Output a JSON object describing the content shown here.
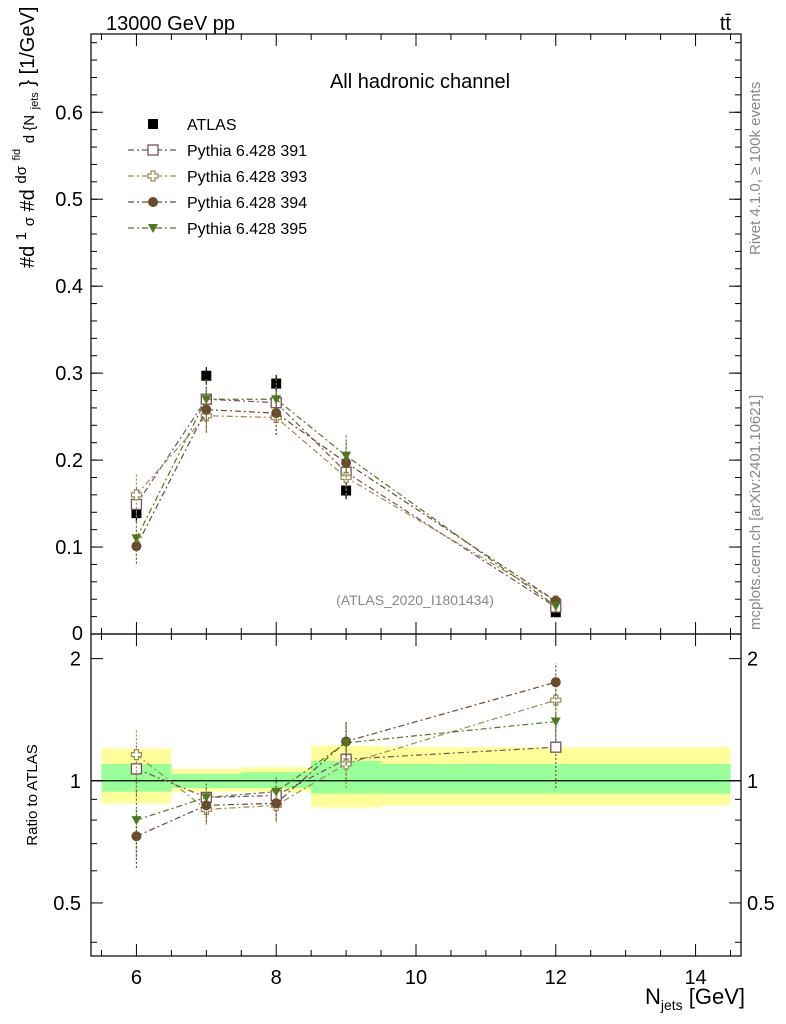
{
  "header": {
    "energy_label": "13000 GeV pp",
    "process_label": "tt̄"
  },
  "side_labels": {
    "rivet": "Rivet 4.1.0, ≥ 100k events",
    "mcplots": "mcplots.cern.ch [arXiv:2401.10621]"
  },
  "chart_data": [
    {
      "type": "line",
      "panel": "main",
      "title": "All hadronic channel",
      "analysis_tag": "(ATLAS_2020_I1801434)",
      "ylabel": "#d¹/σ #d dσᵗᵗ/d{N_jets} [1/GeV]",
      "ylabel_parts": {
        "a": "#d",
        "b": "1",
        "c": "σ",
        "d": "#d",
        "e": "dσ",
        "f": "fid",
        "g": "d {N",
        "h": "jets",
        "i": "} [1/GeV]"
      },
      "xlim": [
        5.35,
        14.65
      ],
      "ylim": [
        0,
        0.69
      ],
      "yticks": [
        0.1,
        0.2,
        0.3,
        0.4,
        0.5,
        0.6
      ],
      "ytick_labels": [
        "0.1",
        "0.2",
        "0.3",
        "0.4",
        "0.5",
        "0.6"
      ],
      "ytick_zero_label": "0",
      "x": [
        6,
        7,
        8,
        9,
        12
      ],
      "series": [
        {
          "name": "ATLAS",
          "marker": "square-filled",
          "color": "#000000",
          "values": [
            0.139,
            0.297,
            0.288,
            0.165,
            0.025
          ],
          "err": [
            0.01,
            0.01,
            0.01,
            0.01,
            0.005
          ]
        },
        {
          "name": "Pythia 6.428 391",
          "marker": "square-open",
          "color": "#7a4e60",
          "values": [
            0.149,
            0.27,
            0.266,
            0.186,
            0.031
          ],
          "err": [
            0.02,
            0.02,
            0.02,
            0.02,
            0.005
          ]
        },
        {
          "name": "Pythia 6.428 393",
          "marker": "cross-open",
          "color": "#9a8a50",
          "values": [
            0.16,
            0.251,
            0.249,
            0.18,
            0.038
          ],
          "err": [
            0.025,
            0.02,
            0.02,
            0.02,
            0.006
          ]
        },
        {
          "name": "Pythia 6.428 394",
          "marker": "circle-filled",
          "color": "#6b4a2e",
          "values": [
            0.101,
            0.258,
            0.254,
            0.197,
            0.038
          ],
          "err": [
            0.02,
            0.025,
            0.025,
            0.025,
            0.006
          ]
        },
        {
          "name": "Pythia 6.428 395",
          "marker": "triangle-down-filled",
          "color": "#4e7a1e",
          "values": [
            0.11,
            0.27,
            0.27,
            0.205,
            0.032
          ],
          "err": [
            0.02,
            0.025,
            0.025,
            0.025,
            0.006
          ]
        }
      ]
    },
    {
      "type": "line",
      "panel": "ratio",
      "ylabel": "Ratio to ATLAS",
      "xlabel": "N",
      "xlabel_sub": "jets",
      "xlabel_unit": " [GeV]",
      "xlim": [
        5.35,
        14.65
      ],
      "ylim": [
        0.37,
        2.3
      ],
      "xticks": [
        6,
        8,
        10,
        12,
        14
      ],
      "xtick_labels": [
        "6",
        "8",
        "10",
        "12",
        "14"
      ],
      "yticks": [
        0.5,
        1,
        2
      ],
      "ytick_labels": [
        "0.5",
        "1",
        "2"
      ],
      "reference": 1,
      "bands": [
        {
          "x0": 5.5,
          "x1": 6.5,
          "inner": [
            0.94,
            1.1
          ],
          "outer": [
            0.88,
            1.2
          ]
        },
        {
          "x0": 6.5,
          "x1": 7.5,
          "inner": [
            0.96,
            1.04
          ],
          "outer": [
            0.94,
            1.07
          ]
        },
        {
          "x0": 7.5,
          "x1": 8.5,
          "inner": [
            0.96,
            1.05
          ],
          "outer": [
            0.94,
            1.08
          ]
        },
        {
          "x0": 8.5,
          "x1": 9.5,
          "inner": [
            0.93,
            1.12
          ],
          "outer": [
            0.86,
            1.22
          ]
        },
        {
          "x0": 9.5,
          "x1": 14.5,
          "inner": [
            0.93,
            1.1
          ],
          "outer": [
            0.87,
            1.21
          ]
        }
      ],
      "x": [
        6,
        7,
        8,
        9,
        12
      ],
      "series": [
        {
          "name": "Pythia 6.428 391",
          "marker": "square-open",
          "color": "#7a4e60",
          "values": [
            1.07,
            0.91,
            0.92,
            1.13,
            1.21
          ],
          "err": [
            0.15,
            0.06,
            0.08,
            0.12,
            0.25
          ]
        },
        {
          "name": "Pythia 6.428 393",
          "marker": "cross-open",
          "color": "#9a8a50",
          "values": [
            1.16,
            0.85,
            0.87,
            1.1,
            1.58
          ],
          "err": [
            0.18,
            0.07,
            0.08,
            0.14,
            0.25
          ]
        },
        {
          "name": "Pythia 6.428 394",
          "marker": "circle-filled",
          "color": "#6b4a2e",
          "values": [
            0.73,
            0.87,
            0.88,
            1.25,
            1.75
          ],
          "err": [
            0.12,
            0.08,
            0.08,
            0.15,
            0.2
          ]
        },
        {
          "name": "Pythia 6.428 395",
          "marker": "triangle-down-filled",
          "color": "#4e7a1e",
          "values": [
            0.8,
            0.91,
            0.94,
            1.24,
            1.4
          ],
          "err": [
            0.15,
            0.08,
            0.08,
            0.15,
            0.15
          ]
        }
      ]
    }
  ],
  "colors": {
    "band_inner": "#99ff99",
    "band_outer": "#ffff99",
    "tag_grey": "#888888"
  }
}
